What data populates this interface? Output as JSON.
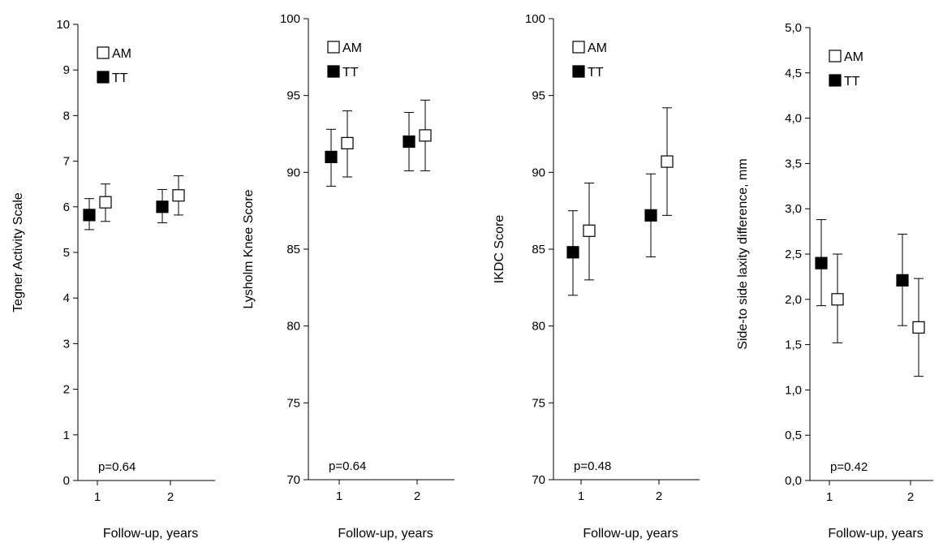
{
  "chart_data": [
    {
      "type": "scatter",
      "ylabel": "Tegner Activity Scale",
      "xlabel": "Follow-up, years",
      "categories": [
        "1",
        "2"
      ],
      "ylim": [
        0,
        10
      ],
      "yticks": [
        "0",
        "1",
        "2",
        "3",
        "4",
        "5",
        "6",
        "7",
        "8",
        "9",
        "10"
      ],
      "annotation": "p=0.64",
      "legend": [
        "AM",
        "TT"
      ],
      "series": [
        {
          "name": "TT",
          "marker": "filled-square",
          "values": [
            5.82,
            6.0
          ],
          "err_low": [
            5.5,
            5.65
          ],
          "err_high": [
            6.18,
            6.38
          ]
        },
        {
          "name": "AM",
          "marker": "open-square",
          "values": [
            6.1,
            6.25
          ],
          "err_low": [
            5.68,
            5.82
          ],
          "err_high": [
            6.5,
            6.68
          ]
        }
      ]
    },
    {
      "type": "scatter",
      "ylabel": "Lysholm Knee Score",
      "xlabel": "Follow-up, years",
      "categories": [
        "1",
        "2"
      ],
      "ylim": [
        69.5,
        100
      ],
      "yticks": [
        "70",
        "75",
        "80",
        "85",
        "90",
        "95",
        "100"
      ],
      "annotation": "p=0.64",
      "legend": [
        "AM",
        "TT"
      ],
      "series": [
        {
          "name": "TT",
          "marker": "filled-square",
          "values": [
            91.0,
            92.0
          ],
          "err_low": [
            89.1,
            90.1
          ],
          "err_high": [
            92.8,
            93.9
          ]
        },
        {
          "name": "AM",
          "marker": "open-square",
          "values": [
            91.9,
            92.4
          ],
          "err_low": [
            89.7,
            90.1
          ],
          "err_high": [
            94.0,
            94.7
          ]
        }
      ]
    },
    {
      "type": "scatter",
      "ylabel": "IKDC Score",
      "xlabel": "Follow-up, years",
      "categories": [
        "1",
        "2"
      ],
      "ylim": [
        69.5,
        100
      ],
      "yticks": [
        "70",
        "75",
        "80",
        "85",
        "90",
        "95",
        "100"
      ],
      "annotation": "p=0.48",
      "legend": [
        "AM",
        "TT"
      ],
      "series": [
        {
          "name": "TT",
          "marker": "filled-square",
          "values": [
            84.8,
            87.2
          ],
          "err_low": [
            82.0,
            84.5
          ],
          "err_high": [
            87.5,
            89.9
          ]
        },
        {
          "name": "AM",
          "marker": "open-square",
          "values": [
            86.2,
            90.7
          ],
          "err_low": [
            83.0,
            87.2
          ],
          "err_high": [
            89.3,
            94.2
          ]
        }
      ]
    },
    {
      "type": "scatter",
      "ylabel": "Side-to side laxity difference, mm",
      "xlabel": "Follow-up, years",
      "categories": [
        "1",
        "2"
      ],
      "ylim": [
        0,
        5
      ],
      "yticks": [
        "0,0",
        "0,5",
        "1,0",
        "1,5",
        "2,0",
        "2,5",
        "3,0",
        "3,5",
        "4,0",
        "4,5",
        "5,0"
      ],
      "annotation": "p=0.42",
      "legend": [
        "AM",
        "TT"
      ],
      "series": [
        {
          "name": "TT",
          "marker": "filled-square",
          "values": [
            2.4,
            2.21
          ],
          "err_low": [
            1.93,
            1.71
          ],
          "err_high": [
            2.88,
            2.72
          ]
        },
        {
          "name": "AM",
          "marker": "open-square",
          "values": [
            2.0,
            1.69
          ],
          "err_low": [
            1.52,
            1.15
          ],
          "err_high": [
            2.5,
            2.23
          ]
        }
      ]
    }
  ]
}
